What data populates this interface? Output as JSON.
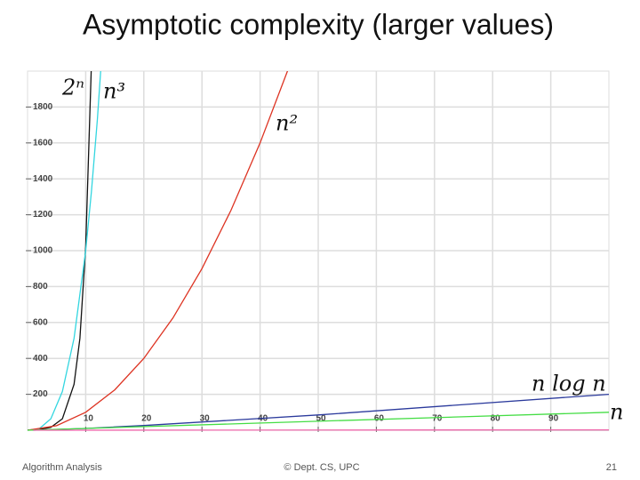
{
  "chart_data": {
    "type": "line",
    "title": "Asymptotic complexity (larger values)",
    "xlim": [
      0,
      100
    ],
    "ylim": [
      0,
      2000
    ],
    "xticks": [
      10,
      20,
      30,
      40,
      50,
      60,
      70,
      80,
      90
    ],
    "yticks": [
      200,
      400,
      600,
      800,
      1000,
      1200,
      1400,
      1600,
      1800
    ],
    "grid": true,
    "series": [
      {
        "name": "2ⁿ",
        "color": "#111111",
        "x": [
          0,
          2,
          4,
          6,
          8,
          9,
          10,
          11
        ],
        "values": [
          1,
          4,
          16,
          64,
          256,
          512,
          1024,
          2048
        ]
      },
      {
        "name": "n³",
        "color": "#33d6e0",
        "x": [
          0,
          2,
          4,
          6,
          8,
          10,
          11,
          12,
          13
        ],
        "values": [
          0,
          8,
          64,
          216,
          512,
          1000,
          1331,
          1728,
          2197
        ]
      },
      {
        "name": "n²",
        "color": "#dd3322",
        "x": [
          0,
          5,
          10,
          15,
          20,
          25,
          30,
          35,
          40,
          45
        ],
        "values": [
          0,
          25,
          100,
          225,
          400,
          625,
          900,
          1225,
          1600,
          2025
        ]
      },
      {
        "name": "n log n",
        "color": "#2b3a9c",
        "x": [
          1,
          10,
          20,
          50,
          100
        ],
        "values": [
          0,
          10,
          26,
          85,
          200
        ]
      },
      {
        "name": "n",
        "color": "#44dd44",
        "x": [
          0,
          100
        ],
        "values": [
          0,
          100
        ]
      },
      {
        "color": "#ee66aa",
        "x": [
          1,
          100
        ],
        "values": [
          0,
          2
        ]
      }
    ]
  },
  "footer": {
    "left": "Algorithm Analysis",
    "center": "© Dept. CS, UPC",
    "right": "21"
  }
}
